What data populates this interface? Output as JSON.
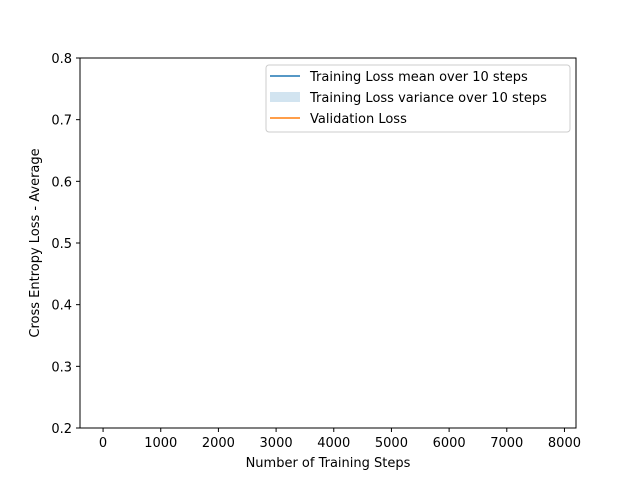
{
  "chart_data": {
    "type": "line",
    "title": "",
    "xlabel": "Number of Training Steps",
    "ylabel": "Cross Entropy Loss - Average",
    "xlim": [
      -400,
      8200
    ],
    "ylim": [
      0.2,
      0.8
    ],
    "xticks": [
      0,
      1000,
      2000,
      3000,
      4000,
      5000,
      6000,
      7000,
      8000
    ],
    "yticks": [
      0.2,
      0.3,
      0.4,
      0.5,
      0.6,
      0.7,
      0.8
    ],
    "grid": false,
    "legend_position": "top-right",
    "series": [
      {
        "name": "Training Loss mean over 10 steps",
        "kind": "line",
        "color": "#1f77b4",
        "x": [],
        "y": []
      },
      {
        "name": "Training Loss variance over 10 steps",
        "kind": "band",
        "color": "#1f77b4",
        "x": [],
        "y": []
      },
      {
        "name": "Validation Loss",
        "kind": "line",
        "color": "#ff7f0e",
        "x": [],
        "y": []
      }
    ]
  }
}
